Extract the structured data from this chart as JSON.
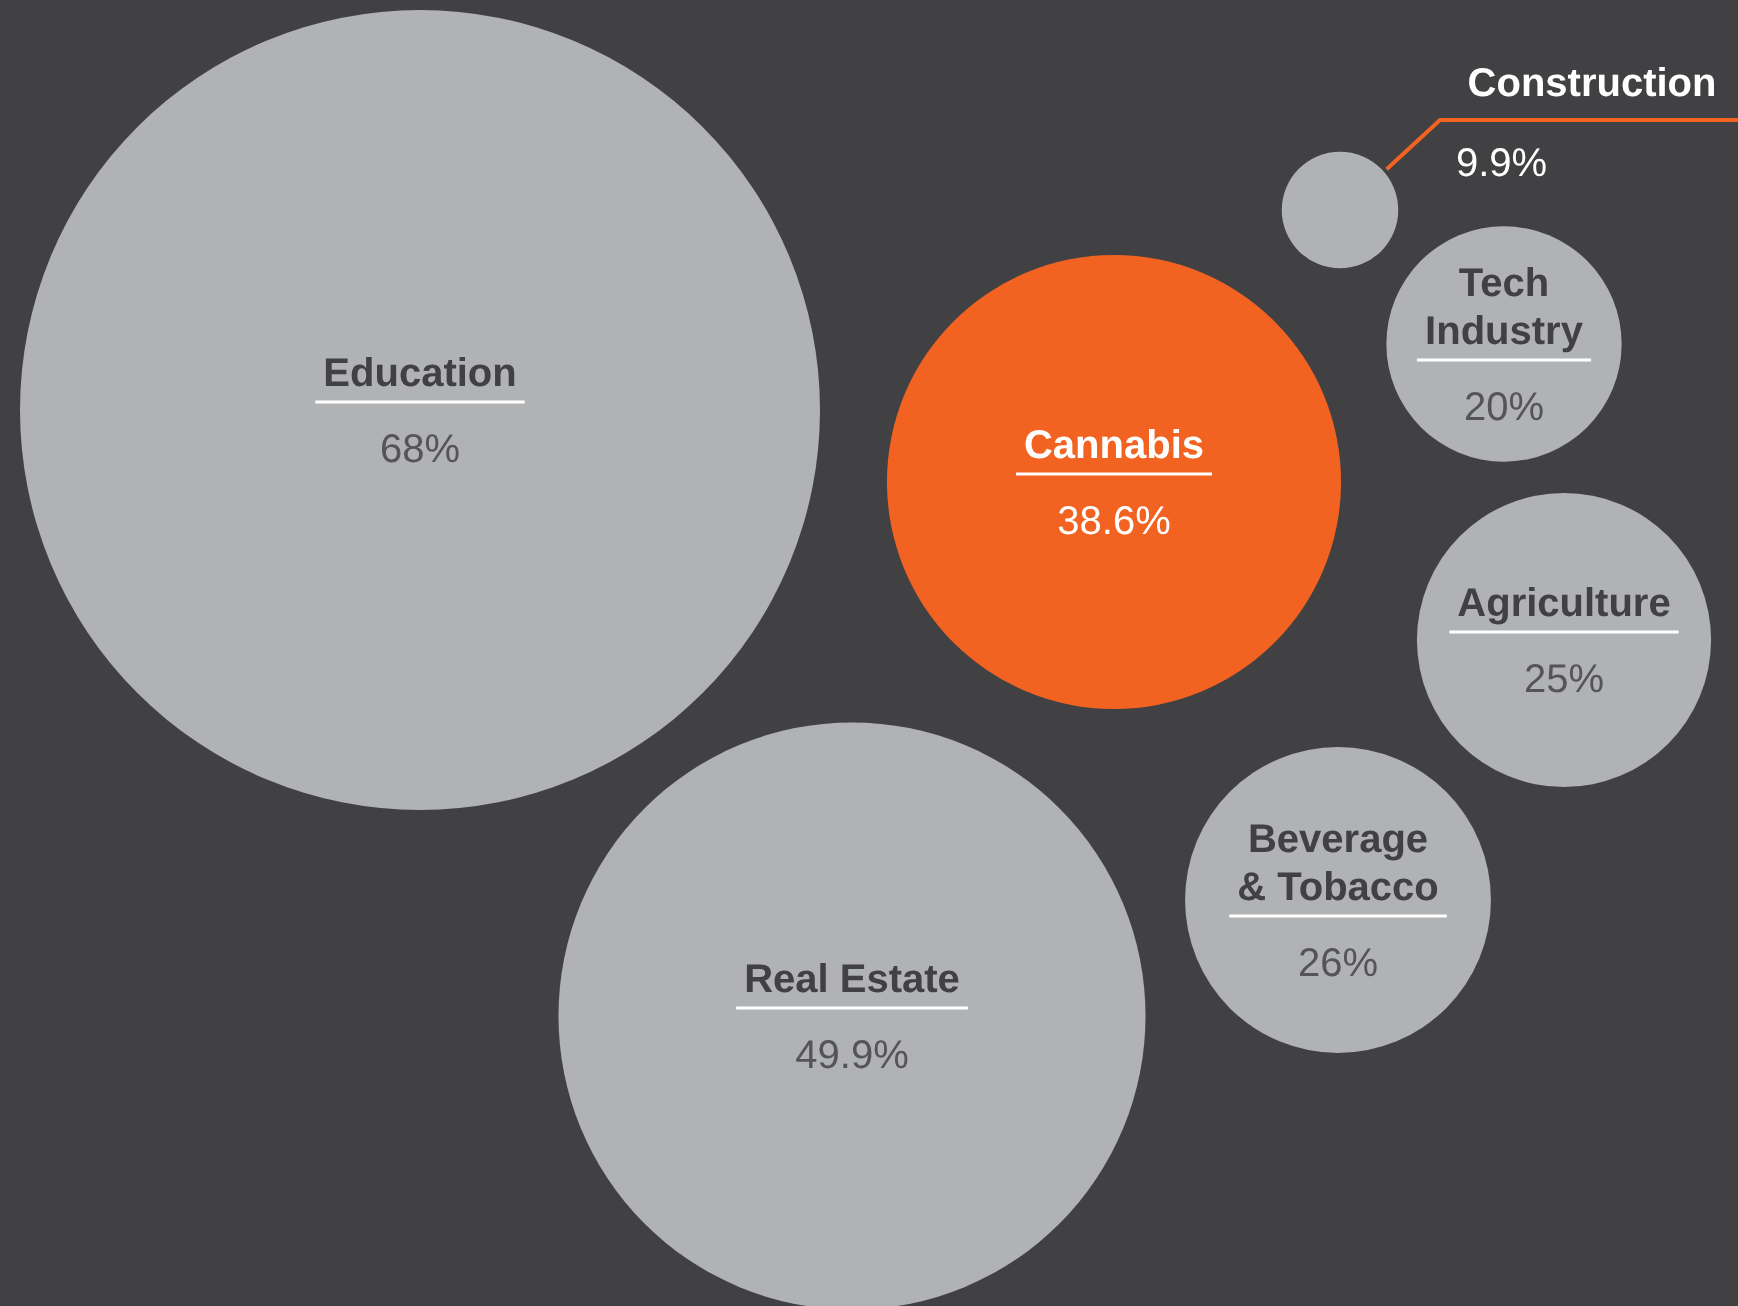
{
  "chart_data": {
    "type": "other",
    "categories": [
      "Education",
      "Cannabis",
      "Real Estate",
      "Construction",
      "Tech Industry",
      "Agriculture",
      "Beverage & Tobacco"
    ],
    "values": [
      68,
      38.6,
      49.9,
      9.9,
      20,
      25,
      26
    ],
    "value_labels": [
      "68%",
      "38.6%",
      "49.9%",
      "9.9%",
      "20%",
      "25%",
      "26%"
    ],
    "colors": [
      "#b1b2b4",
      "#f26322",
      "#b1b2b4",
      "#b1b2b4",
      "#b1b2b4",
      "#b1b2b4",
      "#b1b2b4"
    ]
  }
}
